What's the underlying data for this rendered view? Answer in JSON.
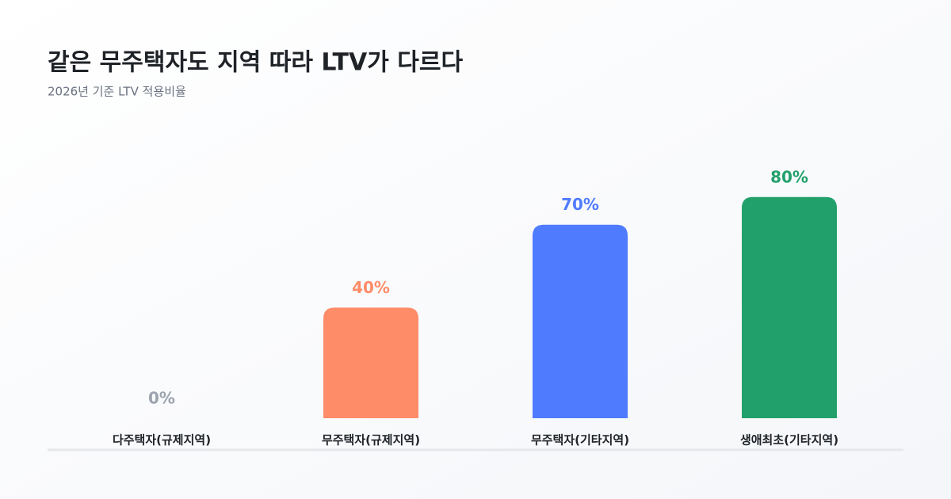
{
  "chart_data": {
    "type": "bar",
    "title": "같은 무주택자도 지역 따라 LTV가 다르다",
    "subtitle": "2026년 기준 LTV 적용비율",
    "categories": [
      "다주택자(규제지역)",
      "무주택자(규제지역)",
      "무주택자(기타지역)",
      "생애최초(기타지역)"
    ],
    "values": [
      0,
      40,
      70,
      80
    ],
    "value_labels": [
      "0%",
      "40%",
      "70%",
      "80%"
    ],
    "colors": [
      "#9ca3af",
      "#ff8c69",
      "#4f7bff",
      "#22a06b"
    ]
  }
}
